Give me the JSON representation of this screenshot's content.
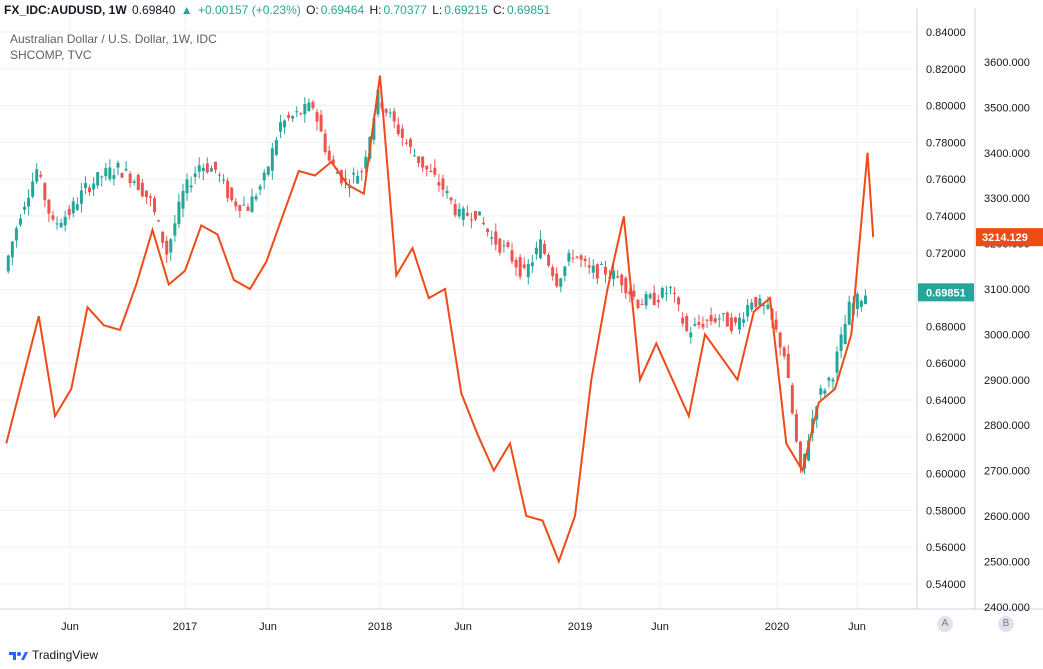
{
  "header": {
    "symbol": "FX_IDC:AUDUSD, 1W",
    "last": "0.69840",
    "arrow": "▲",
    "change": "+0.00157 (+0.23%)",
    "o_label": "O:",
    "o": "0.69464",
    "h_label": "H:",
    "h": "0.70377",
    "l_label": "L:",
    "l": "0.69215",
    "c_label": "C:",
    "c": "0.69851"
  },
  "legend": {
    "main": "Australian Dollar / U.S. Dollar, 1W, IDC",
    "compare": "SHCOMP, TVC"
  },
  "brand": "TradingView",
  "scale_buttons": {
    "a": "A",
    "b": "B"
  },
  "colors": {
    "up": "#26a69a",
    "down": "#ef5350",
    "compare": "#f04a17",
    "grid": "#eef0f3"
  },
  "chart_data": {
    "type": "line",
    "x_ticks": [
      "Jun",
      "2017",
      "Jun",
      "2018",
      "Jun",
      "2019",
      "Jun",
      "2020",
      "Jun"
    ],
    "y_left_ticks": [
      "0.84000",
      "0.82000",
      "0.80000",
      "0.78000",
      "0.76000",
      "0.74000",
      "0.72000",
      "0.70000",
      "0.68000",
      "0.66000",
      "0.64000",
      "0.62000",
      "0.60000",
      "0.58000",
      "0.56000",
      "0.54000"
    ],
    "y_right_ticks": [
      "3600.000",
      "3500.000",
      "3400.000",
      "3300.000",
      "3200.000",
      "3100.000",
      "3000.000",
      "2900.000",
      "2800.000",
      "2700.000",
      "2600.000",
      "2500.000",
      "2400.000"
    ],
    "audusd_last": "0.69851",
    "shcomp_last": "3214.129",
    "series": [
      {
        "name": "AUDUSD",
        "style": "candlestick-approx",
        "axis": "left",
        "points": [
          [
            "2016-02",
            0.71
          ],
          [
            "2016-03",
            0.742
          ],
          [
            "2016-04",
            0.765
          ],
          [
            "2016-05",
            0.735
          ],
          [
            "2016-06",
            0.742
          ],
          [
            "2016-07",
            0.755
          ],
          [
            "2016-08",
            0.762
          ],
          [
            "2016-09",
            0.766
          ],
          [
            "2016-10",
            0.76
          ],
          [
            "2016-11",
            0.748
          ],
          [
            "2016-12",
            0.72
          ],
          [
            "2017-01",
            0.752
          ],
          [
            "2017-02",
            0.768
          ],
          [
            "2017-03",
            0.765
          ],
          [
            "2017-04",
            0.748
          ],
          [
            "2017-05",
            0.745
          ],
          [
            "2017-06",
            0.76
          ],
          [
            "2017-07",
            0.79
          ],
          [
            "2017-08",
            0.795
          ],
          [
            "2017-09",
            0.8
          ],
          [
            "2017-10",
            0.77
          ],
          [
            "2017-11",
            0.758
          ],
          [
            "2017-12",
            0.765
          ],
          [
            "2018-01",
            0.805
          ],
          [
            "2018-02",
            0.79
          ],
          [
            "2018-03",
            0.776
          ],
          [
            "2018-04",
            0.765
          ],
          [
            "2018-05",
            0.755
          ],
          [
            "2018-06",
            0.74
          ],
          [
            "2018-07",
            0.742
          ],
          [
            "2018-08",
            0.728
          ],
          [
            "2018-09",
            0.72
          ],
          [
            "2018-10",
            0.708
          ],
          [
            "2018-11",
            0.725
          ],
          [
            "2018-12",
            0.705
          ],
          [
            "2019-01",
            0.72
          ],
          [
            "2019-02",
            0.71
          ],
          [
            "2019-03",
            0.71
          ],
          [
            "2019-04",
            0.705
          ],
          [
            "2019-05",
            0.693
          ],
          [
            "2019-06",
            0.695
          ],
          [
            "2019-07",
            0.7
          ],
          [
            "2019-08",
            0.677
          ],
          [
            "2019-09",
            0.682
          ],
          [
            "2019-10",
            0.685
          ],
          [
            "2019-11",
            0.68
          ],
          [
            "2019-12",
            0.695
          ],
          [
            "2020-01",
            0.688
          ],
          [
            "2020-02",
            0.665
          ],
          [
            "2020-03",
            0.6
          ],
          [
            "2020-04",
            0.64
          ],
          [
            "2020-05",
            0.655
          ],
          [
            "2020-06",
            0.69
          ],
          [
            "2020-07",
            0.698
          ]
        ]
      },
      {
        "name": "SHCOMP",
        "style": "line",
        "axis": "right",
        "points": [
          [
            "2016-02",
            2760
          ],
          [
            "2016-03",
            2900
          ],
          [
            "2016-04",
            3040
          ],
          [
            "2016-05",
            2820
          ],
          [
            "2016-06",
            2880
          ],
          [
            "2016-07",
            3060
          ],
          [
            "2016-08",
            3020
          ],
          [
            "2016-09",
            3010
          ],
          [
            "2016-10",
            3110
          ],
          [
            "2016-11",
            3230
          ],
          [
            "2016-12",
            3110
          ],
          [
            "2017-01",
            3140
          ],
          [
            "2017-02",
            3240
          ],
          [
            "2017-03",
            3220
          ],
          [
            "2017-04",
            3120
          ],
          [
            "2017-05",
            3100
          ],
          [
            "2017-06",
            3160
          ],
          [
            "2017-07",
            3260
          ],
          [
            "2017-08",
            3360
          ],
          [
            "2017-09",
            3350
          ],
          [
            "2017-10",
            3380
          ],
          [
            "2017-11",
            3330
          ],
          [
            "2017-12",
            3310
          ],
          [
            "2018-01",
            3570
          ],
          [
            "2018-02",
            3130
          ],
          [
            "2018-03",
            3190
          ],
          [
            "2018-04",
            3080
          ],
          [
            "2018-05",
            3100
          ],
          [
            "2018-06",
            2870
          ],
          [
            "2018-07",
            2780
          ],
          [
            "2018-08",
            2700
          ],
          [
            "2018-09",
            2760
          ],
          [
            "2018-10",
            2600
          ],
          [
            "2018-11",
            2590
          ],
          [
            "2018-12",
            2500
          ],
          [
            "2019-01",
            2600
          ],
          [
            "2019-02",
            2900
          ],
          [
            "2019-03",
            3100
          ],
          [
            "2019-04",
            3260
          ],
          [
            "2019-05",
            2900
          ],
          [
            "2019-06",
            2980
          ],
          [
            "2019-07",
            2900
          ],
          [
            "2019-08",
            2820
          ],
          [
            "2019-09",
            3000
          ],
          [
            "2019-10",
            2950
          ],
          [
            "2019-11",
            2900
          ],
          [
            "2019-12",
            3050
          ],
          [
            "2020-01",
            3080
          ],
          [
            "2020-02",
            2760
          ],
          [
            "2020-03",
            2700
          ],
          [
            "2020-04",
            2850
          ],
          [
            "2020-05",
            2880
          ],
          [
            "2020-06",
            3000
          ],
          [
            "2020-07",
            3400
          ],
          [
            "2020-07b",
            3214
          ]
        ]
      }
    ]
  }
}
